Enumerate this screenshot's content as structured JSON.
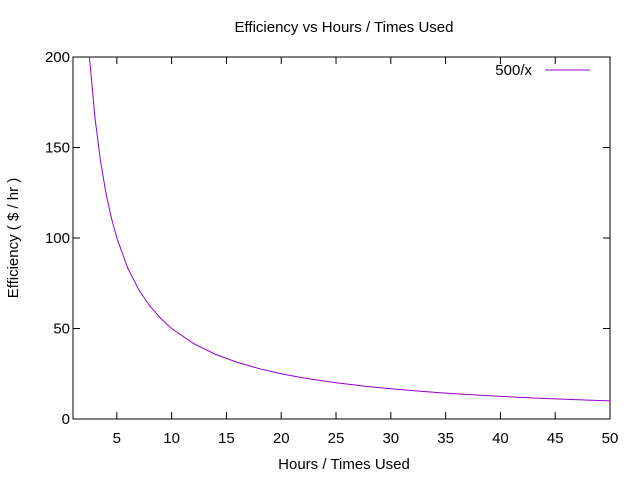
{
  "chart_data": {
    "type": "line",
    "title": "Efficiency vs Hours / Times Used",
    "xlabel": "Hours / Times Used",
    "ylabel": "Efficiency ( $ / hr )",
    "xlim": [
      1,
      50
    ],
    "ylim": [
      0,
      200
    ],
    "xticks": [
      5,
      10,
      15,
      20,
      25,
      30,
      35,
      40,
      45,
      50
    ],
    "yticks": [
      0,
      50,
      100,
      150,
      200
    ],
    "grid": false,
    "legend_position": "top-right",
    "series": [
      {
        "name": "500/x",
        "function": "500/x",
        "color": "#9400d3",
        "x": [
          2.5,
          3,
          3.5,
          4,
          4.5,
          5,
          6,
          7,
          8,
          9,
          10,
          12,
          14,
          16,
          18,
          20,
          22,
          25,
          28,
          30,
          33,
          35,
          38,
          40,
          43,
          45,
          48,
          50
        ],
        "values": [
          200,
          166.7,
          142.9,
          125,
          111.1,
          100,
          83.3,
          71.4,
          62.5,
          55.6,
          50,
          41.7,
          35.7,
          31.3,
          27.8,
          25,
          22.7,
          20,
          17.9,
          16.7,
          15.2,
          14.3,
          13.2,
          12.5,
          11.6,
          11.1,
          10.4,
          10
        ]
      }
    ]
  }
}
